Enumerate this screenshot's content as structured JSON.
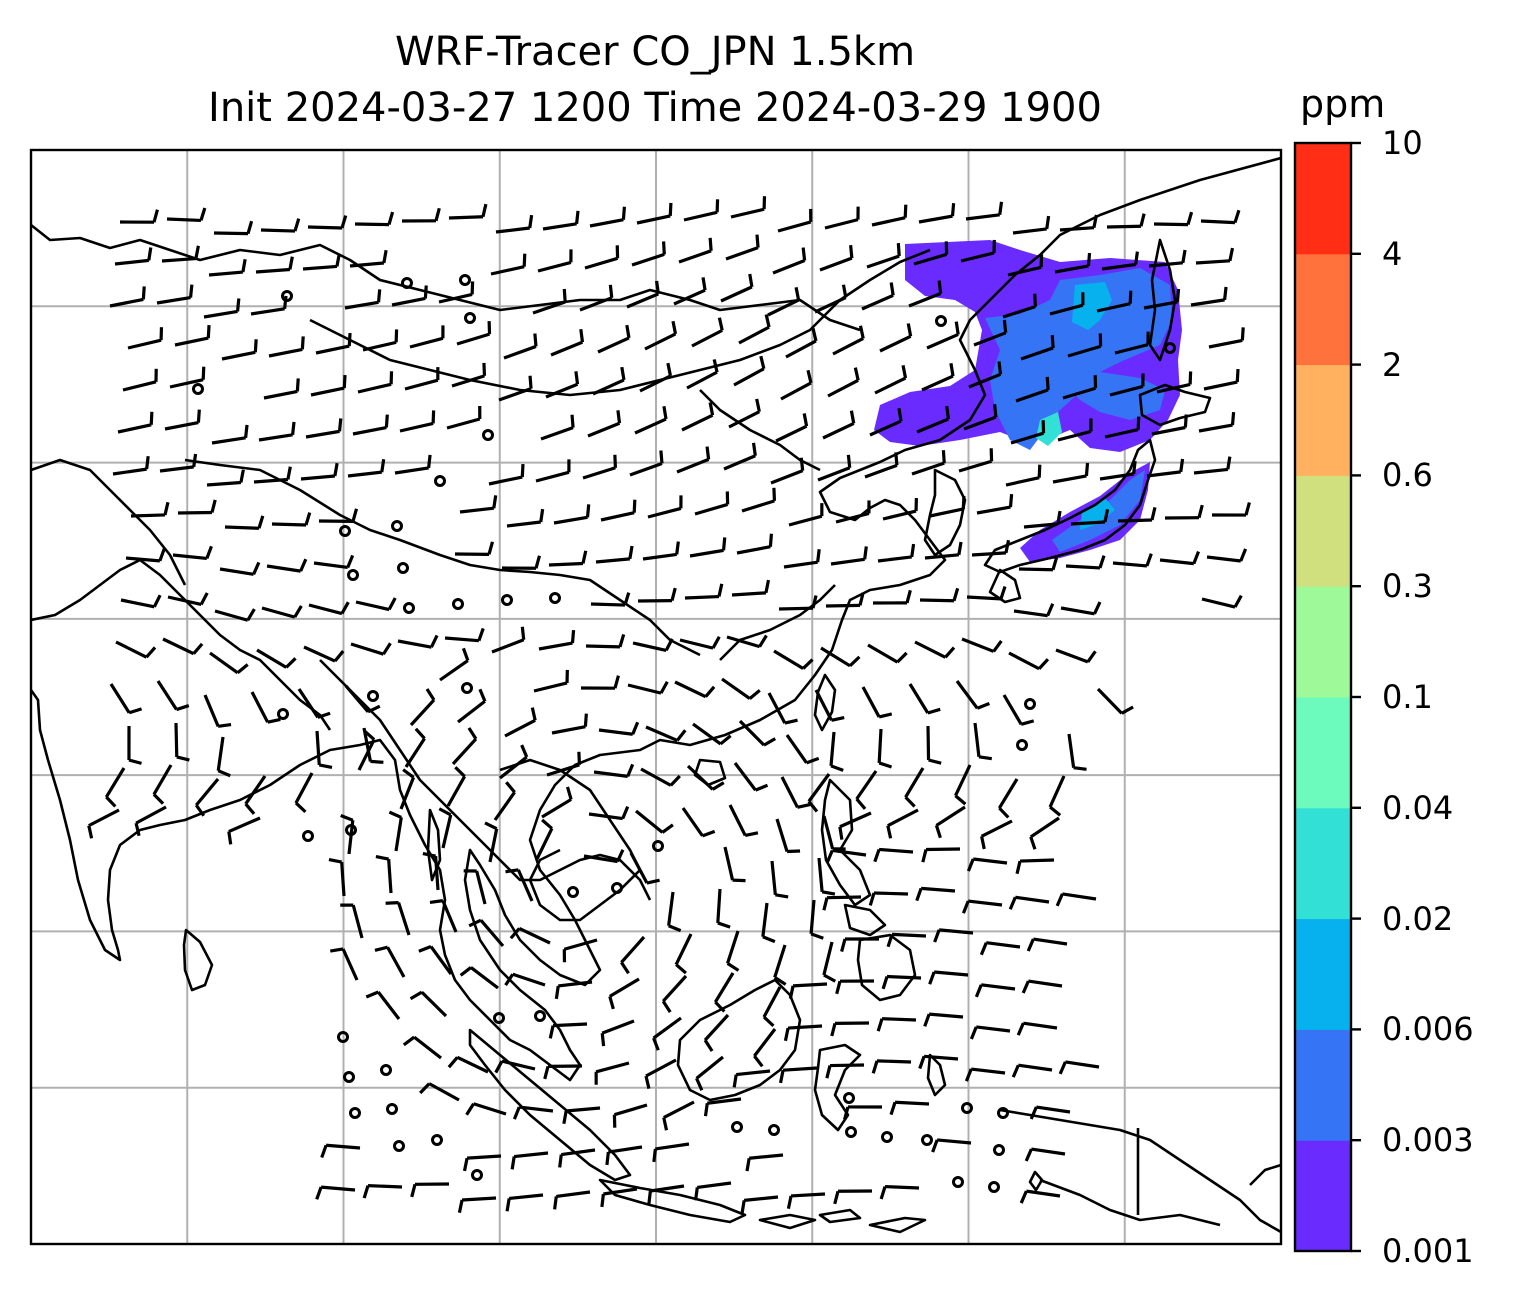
{
  "title": {
    "line1": "WRF-Tracer CO_JPN 1.5km",
    "line2": "Init 2024-03-27 1200 Time 2024-03-29 1900"
  },
  "colorbar": {
    "unit": "ppm",
    "ticks": [
      "0.001",
      "0.003",
      "0.006",
      "0.02",
      "0.04",
      "0.1",
      "0.3",
      "0.6",
      "2",
      "4",
      "10"
    ],
    "colors": [
      "#6a2bff",
      "#3575f5",
      "#07b1ee",
      "#33e0d6",
      "#6dfbbd",
      "#9ef998",
      "#d0e07e",
      "#ffb160",
      "#ff723c",
      "#ff2e15"
    ]
  },
  "map": {
    "grid": true,
    "grid_columns": 8,
    "grid_rows": 7,
    "tracer_plume_color_levels": [
      "0.001",
      "0.003",
      "0.006",
      "0.02"
    ]
  }
}
